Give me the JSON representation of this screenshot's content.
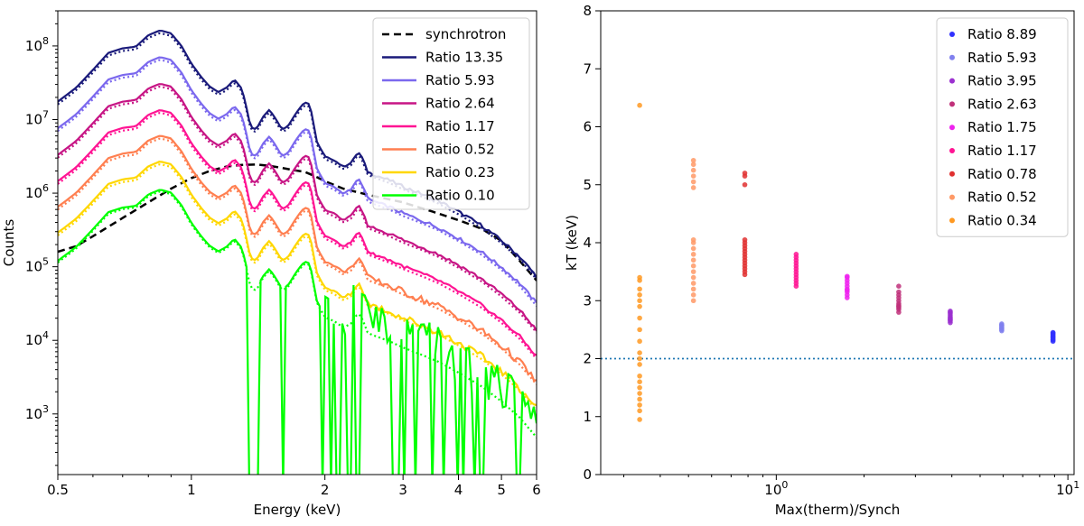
{
  "chart_data": [
    {
      "type": "line",
      "xscale": "log",
      "yscale": "log",
      "xlabel": "Energy (keV)",
      "ylabel": "Counts",
      "xlim": [
        0.5,
        6
      ],
      "ylim": [
        150,
        300000000
      ],
      "xticks": [
        {
          "v": 0.5,
          "label": "0.5"
        },
        {
          "v": 1,
          "label": "1"
        },
        {
          "v": 2,
          "label": "2"
        },
        {
          "v": 3,
          "label": "3"
        },
        {
          "v": 4,
          "label": "4"
        },
        {
          "v": 5,
          "label": "5"
        },
        {
          "v": 6,
          "label": "6"
        }
      ],
      "yticks": [
        {
          "v": 1000,
          "base": "10",
          "exp": "3"
        },
        {
          "v": 10000,
          "base": "10",
          "exp": "4"
        },
        {
          "v": 100000,
          "base": "10",
          "exp": "5"
        },
        {
          "v": 1000000,
          "base": "10",
          "exp": "6"
        },
        {
          "v": 10000000,
          "base": "10",
          "exp": "7"
        },
        {
          "v": 100000000,
          "base": "10",
          "exp": "8"
        }
      ],
      "legend_position": "upper right",
      "synchrotron": {
        "name": "synchrotron",
        "color": "#000000",
        "points": [
          [
            0.5,
            160000.0
          ],
          [
            0.55,
            190000.0
          ],
          [
            0.6,
            260000.0
          ],
          [
            0.7,
            460000.0
          ],
          [
            0.8,
            750000.0
          ],
          [
            0.9,
            1150000.0
          ],
          [
            1.0,
            1600000.0
          ],
          [
            1.1,
            2000000.0
          ],
          [
            1.2,
            2300000.0
          ],
          [
            1.3,
            2420000.0
          ],
          [
            1.4,
            2450000.0
          ],
          [
            1.5,
            2350000.0
          ],
          [
            1.6,
            2200000.0
          ],
          [
            1.7,
            2050000.0
          ],
          [
            1.8,
            1950000.0
          ],
          [
            1.9,
            1700000.0
          ],
          [
            2.0,
            1450000.0
          ],
          [
            2.2,
            1150000.0
          ],
          [
            2.5,
            950000.0
          ],
          [
            3.0,
            750000.0
          ],
          [
            3.5,
            560000.0
          ],
          [
            4.0,
            430000.0
          ],
          [
            4.5,
            330000.0
          ],
          [
            5.0,
            225000.0
          ],
          [
            5.5,
            120000.0
          ],
          [
            6.0,
            65000.0
          ]
        ]
      },
      "base_shape": {
        "points": [
          [
            0.5,
            1.0
          ],
          [
            0.55,
            1.55
          ],
          [
            0.6,
            2.7
          ],
          [
            0.65,
            4.6
          ],
          [
            0.7,
            5.3
          ],
          [
            0.75,
            5.6
          ],
          [
            0.8,
            8.0
          ],
          [
            0.85,
            9.3
          ],
          [
            0.9,
            8.5
          ],
          [
            0.95,
            5.7
          ],
          [
            1.0,
            3.3
          ],
          [
            1.05,
            2.2
          ],
          [
            1.1,
            1.6
          ],
          [
            1.15,
            1.35
          ],
          [
            1.2,
            1.55
          ],
          [
            1.25,
            2.0
          ],
          [
            1.3,
            1.5
          ],
          [
            1.33,
            0.85
          ],
          [
            1.36,
            0.45
          ],
          [
            1.4,
            0.42
          ],
          [
            1.45,
            0.62
          ],
          [
            1.5,
            0.78
          ],
          [
            1.55,
            0.58
          ],
          [
            1.6,
            0.42
          ],
          [
            1.65,
            0.46
          ],
          [
            1.7,
            0.62
          ],
          [
            1.75,
            0.8
          ],
          [
            1.8,
            0.98
          ],
          [
            1.85,
            0.92
          ],
          [
            1.88,
            0.55
          ],
          [
            1.92,
            0.28
          ],
          [
            2.0,
            0.18
          ],
          [
            2.1,
            0.16
          ],
          [
            2.2,
            0.13
          ],
          [
            2.3,
            0.15
          ],
          [
            2.35,
            0.19
          ],
          [
            2.4,
            0.2
          ],
          [
            2.45,
            0.15
          ],
          [
            2.5,
            0.11
          ],
          [
            2.6,
            0.1
          ],
          [
            2.8,
            0.085
          ],
          [
            3.0,
            0.07
          ],
          [
            3.3,
            0.056
          ],
          [
            3.6,
            0.045
          ],
          [
            4.0,
            0.032
          ],
          [
            4.5,
            0.021
          ],
          [
            5.0,
            0.013
          ],
          [
            5.5,
            0.0078
          ],
          [
            6.0,
            0.0042
          ]
        ]
      },
      "series": [
        {
          "name": "Ratio 13.35",
          "color": "#1a1a7a",
          "amp": 17500000.0
        },
        {
          "name": "Ratio 5.93",
          "color": "#7b68ee",
          "amp": 7600000.0
        },
        {
          "name": "Ratio 2.64",
          "color": "#c71585",
          "amp": 3300000.0
        },
        {
          "name": "Ratio 1.17",
          "color": "#ff1493",
          "amp": 1450000.0
        },
        {
          "name": "Ratio 0.52",
          "color": "#ff7f50",
          "amp": 650000.0
        },
        {
          "name": "Ratio 0.23",
          "color": "#ffd700",
          "amp": 290000.0
        },
        {
          "name": "Ratio 0.10",
          "color": "#00ff00",
          "amp": 120000.0
        }
      ]
    },
    {
      "type": "scatter",
      "xscale": "log",
      "xlabel": "Max(therm)/Synch",
      "ylabel": "kT (keV)",
      "xlim": [
        0.25,
        10.5
      ],
      "ylim": [
        0,
        8
      ],
      "xticks": [
        {
          "v": 1,
          "base": "10",
          "exp": "0"
        },
        {
          "v": 10,
          "base": "10",
          "exp": "1"
        }
      ],
      "yticks": [
        0,
        1,
        2,
        3,
        4,
        5,
        6,
        7,
        8
      ],
      "hline": {
        "y": 2,
        "color": "#1f77b4",
        "style": "dotted"
      },
      "legend_position": "upper right",
      "series": [
        {
          "name": "Ratio 8.89",
          "color": "#3030ff",
          "x": 8.89,
          "y": [
            2.3,
            2.32,
            2.35,
            2.37,
            2.38,
            2.4,
            2.42,
            2.44,
            2.45,
            2.33
          ]
        },
        {
          "name": "Ratio 5.93",
          "color": "#8080ee",
          "x": 5.93,
          "y": [
            2.48,
            2.5,
            2.52,
            2.55,
            2.57,
            2.6,
            2.53,
            2.58
          ]
        },
        {
          "name": "Ratio 3.95",
          "color": "#9b30d0",
          "x": 3.95,
          "y": [
            2.62,
            2.65,
            2.68,
            2.7,
            2.72,
            2.75,
            2.78,
            2.8,
            2.82,
            2.67
          ]
        },
        {
          "name": "Ratio 2.63",
          "color": "#c0307a",
          "x": 2.63,
          "y": [
            2.8,
            2.85,
            2.88,
            2.9,
            2.95,
            3.0,
            3.05,
            3.1,
            3.15,
            3.25,
            2.92
          ]
        },
        {
          "name": "Ratio 1.75",
          "color": "#ee22ee",
          "x": 1.75,
          "y": [
            3.05,
            3.1,
            3.15,
            3.2,
            3.25,
            3.3,
            3.35,
            3.4,
            3.42,
            3.18
          ]
        },
        {
          "name": "Ratio 1.17",
          "color": "#ff1493",
          "x": 1.17,
          "y": [
            3.25,
            3.3,
            3.35,
            3.4,
            3.45,
            3.5,
            3.55,
            3.6,
            3.65,
            3.7,
            3.75,
            3.8
          ]
        },
        {
          "name": "Ratio 0.78",
          "color": "#e03030",
          "x": 0.78,
          "y": [
            3.45,
            3.5,
            3.55,
            3.6,
            3.65,
            3.7,
            3.75,
            3.8,
            3.85,
            3.9,
            3.95,
            4.0,
            4.05,
            5.0,
            5.15,
            5.2
          ]
        },
        {
          "name": "Ratio 0.52",
          "color": "#ff9966",
          "x": 0.52,
          "y": [
            3.0,
            3.1,
            3.2,
            3.3,
            3.4,
            3.5,
            3.6,
            3.7,
            3.8,
            3.9,
            4.0,
            4.05,
            4.95,
            5.05,
            5.15,
            5.25,
            5.35,
            5.42
          ]
        },
        {
          "name": "Ratio 0.34",
          "color": "#ff9922",
          "x": 0.34,
          "y": [
            0.95,
            1.1,
            1.2,
            1.3,
            1.4,
            1.5,
            1.6,
            1.7,
            1.9,
            2.0,
            2.1,
            2.3,
            2.5,
            2.7,
            2.9,
            3.0,
            3.1,
            3.2,
            3.35,
            3.4,
            6.37
          ]
        }
      ]
    }
  ]
}
